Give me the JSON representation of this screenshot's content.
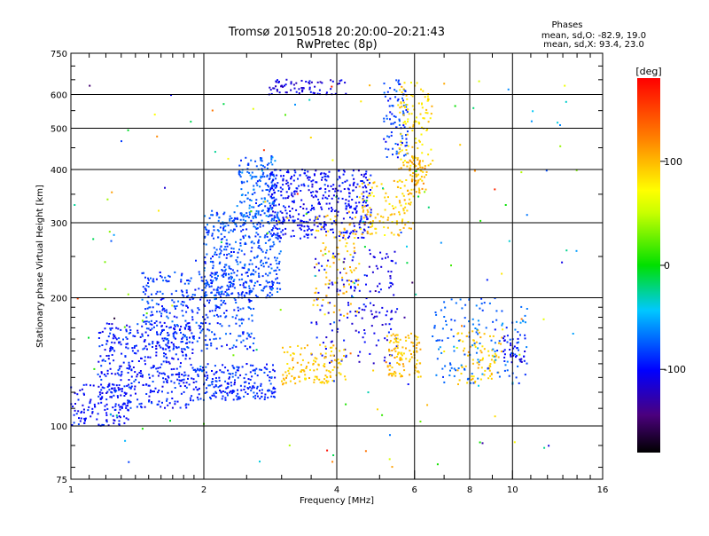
{
  "header": {
    "title_line1": "Tromsø 20150518 20:20:00–20:21:43",
    "title_line2": "RwPretec (8p)"
  },
  "stats": {
    "label": "Phases",
    "line_o": "mean, sd,O: -82.9, 19.0",
    "line_x": "mean, sd,X:  93.4, 23.0"
  },
  "colorbar": {
    "unit_label": "[deg]",
    "range": [
      -180,
      180
    ],
    "ticks": [
      {
        "value": 100,
        "label": "100"
      },
      {
        "value": 0,
        "label": "0"
      },
      {
        "value": -100,
        "label": "-100"
      }
    ]
  },
  "chart_data": {
    "type": "scatter",
    "title": "Tromsø 20150518 20:20:00–20:21:43",
    "subtitle": "RwPretec (8p)",
    "xlabel": "Frequency [MHz]",
    "ylabel": "Stationary phase Virtual Height [km]",
    "x_scale": "log",
    "y_scale": "log",
    "xlim": [
      1,
      16
    ],
    "ylim": [
      75,
      750
    ],
    "grid": true,
    "color_variable": "phase [deg]",
    "x_ticks": [
      {
        "value": 1,
        "label": "1"
      },
      {
        "value": 2,
        "label": "2"
      },
      {
        "value": 4,
        "label": "4"
      },
      {
        "value": 6,
        "label": "6"
      },
      {
        "value": 8,
        "label": "8"
      },
      {
        "value": 10,
        "label": "10"
      },
      {
        "value": 16,
        "label": "16"
      }
    ],
    "y_ticks": [
      {
        "value": 75,
        "label": "75"
      },
      {
        "value": 100,
        "label": "100"
      },
      {
        "value": 200,
        "label": "200"
      },
      {
        "value": 300,
        "label": "300"
      },
      {
        "value": 400,
        "label": "400"
      },
      {
        "value": 500,
        "label": "500"
      },
      {
        "value": 600,
        "label": "600"
      },
      {
        "value": 750,
        "label": "750"
      }
    ],
    "x_gridlines": [
      2,
      4,
      6,
      8,
      10
    ],
    "y_gridlines": [
      100,
      200,
      300,
      400,
      500,
      600
    ],
    "x_minor_ticks": [
      1.1,
      1.2,
      1.3,
      1.4,
      1.5,
      1.6,
      1.7,
      1.8,
      1.9,
      2.5,
      3,
      3.5,
      5,
      7,
      9,
      11,
      12,
      13,
      14,
      15
    ],
    "y_minor_ticks": [
      80,
      90,
      110,
      120,
      130,
      140,
      150,
      160,
      170,
      180,
      190,
      250,
      350,
      450,
      550,
      650,
      700
    ],
    "point_clusters": [
      {
        "f_min": 1.0,
        "f_max": 1.35,
        "h_min": 100,
        "h_max": 125,
        "phase": -100,
        "count": 130
      },
      {
        "f_min": 1.15,
        "f_max": 1.9,
        "h_min": 110,
        "h_max": 175,
        "phase": -95,
        "count": 420
      },
      {
        "f_min": 1.45,
        "f_max": 2.6,
        "h_min": 150,
        "h_max": 230,
        "phase": -85,
        "count": 380
      },
      {
        "f_min": 1.9,
        "f_max": 2.9,
        "h_min": 115,
        "h_max": 140,
        "phase": -90,
        "count": 220
      },
      {
        "f_min": 2.0,
        "f_max": 3.0,
        "h_min": 200,
        "h_max": 320,
        "phase": -80,
        "count": 420
      },
      {
        "f_min": 2.4,
        "f_max": 2.9,
        "h_min": 300,
        "h_max": 430,
        "phase": -75,
        "count": 160
      },
      {
        "f_min": 2.8,
        "f_max": 4.8,
        "h_min": 275,
        "h_max": 400,
        "phase": -100,
        "count": 430
      },
      {
        "f_min": 2.8,
        "f_max": 4.2,
        "h_min": 600,
        "h_max": 650,
        "phase": -110,
        "count": 70
      },
      {
        "f_min": 5.1,
        "f_max": 5.8,
        "h_min": 420,
        "h_max": 650,
        "phase": -85,
        "count": 90
      },
      {
        "f_min": 3.5,
        "f_max": 5.5,
        "h_min": 140,
        "h_max": 260,
        "phase": -105,
        "count": 170
      },
      {
        "f_min": 3.0,
        "f_max": 4.2,
        "h_min": 125,
        "h_max": 155,
        "phase": 92,
        "count": 130
      },
      {
        "f_min": 3.5,
        "f_max": 4.5,
        "h_min": 180,
        "h_max": 320,
        "phase": 95,
        "count": 100
      },
      {
        "f_min": 4.5,
        "f_max": 6.0,
        "h_min": 280,
        "h_max": 380,
        "phase": 90,
        "count": 120
      },
      {
        "f_min": 5.5,
        "f_max": 6.6,
        "h_min": 400,
        "h_max": 640,
        "phase": 85,
        "count": 110
      },
      {
        "f_min": 5.8,
        "f_max": 6.4,
        "h_min": 350,
        "h_max": 430,
        "phase": 100,
        "count": 70
      },
      {
        "f_min": 5.2,
        "f_max": 6.2,
        "h_min": 130,
        "h_max": 165,
        "phase": 95,
        "count": 110
      },
      {
        "f_min": 7.5,
        "f_max": 9.5,
        "h_min": 125,
        "h_max": 170,
        "phase": 92,
        "count": 90
      },
      {
        "f_min": 6.5,
        "f_max": 10.8,
        "h_min": 125,
        "h_max": 200,
        "phase": -70,
        "count": 140
      },
      {
        "f_min": 9.5,
        "f_max": 10.8,
        "h_min": 140,
        "h_max": 165,
        "phase": -100,
        "count": 40
      },
      {
        "f_min": 1.0,
        "f_max": 14.0,
        "h_min": 80,
        "h_max": 650,
        "phase": 0,
        "count": 160
      }
    ]
  }
}
